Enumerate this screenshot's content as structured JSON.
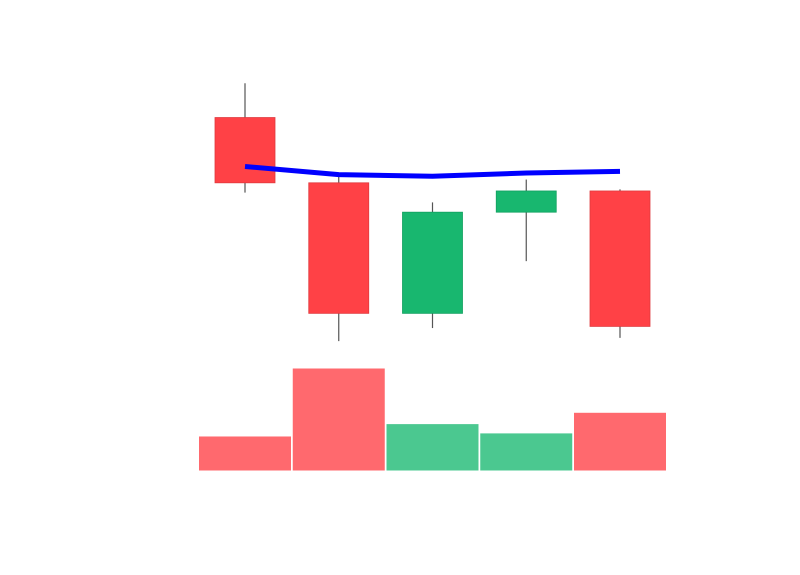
{
  "chart_data": {
    "type": "candlestick",
    "title": "",
    "xlabel": "",
    "ylabel": "",
    "grid": false,
    "legend": "none",
    "x": [
      1,
      2,
      3,
      4,
      5
    ],
    "candles": [
      {
        "open": 10.0,
        "high": 11.05,
        "low": 7.7,
        "close": 8.0
      },
      {
        "open": 8.0,
        "high": 8.3,
        "low": 3.15,
        "close": 4.0
      },
      {
        "open": 4.0,
        "high": 7.4,
        "low": 3.55,
        "close": 7.1
      },
      {
        "open": 7.1,
        "high": 8.1,
        "low": 5.6,
        "close": 7.75
      },
      {
        "open": 7.75,
        "high": 7.8,
        "low": 3.25,
        "close": 3.6
      }
    ],
    "moving_average": [
      8.5,
      8.25,
      8.2,
      8.3,
      8.35
    ],
    "volume": [
      34,
      100,
      46,
      37,
      57
    ],
    "colors": {
      "up": "#18b76f",
      "down": "#ff4146",
      "up_volume": "#4bc890",
      "down_volume": "#ff696e",
      "moving_average": "#0000ff",
      "wick": "#555555"
    }
  }
}
